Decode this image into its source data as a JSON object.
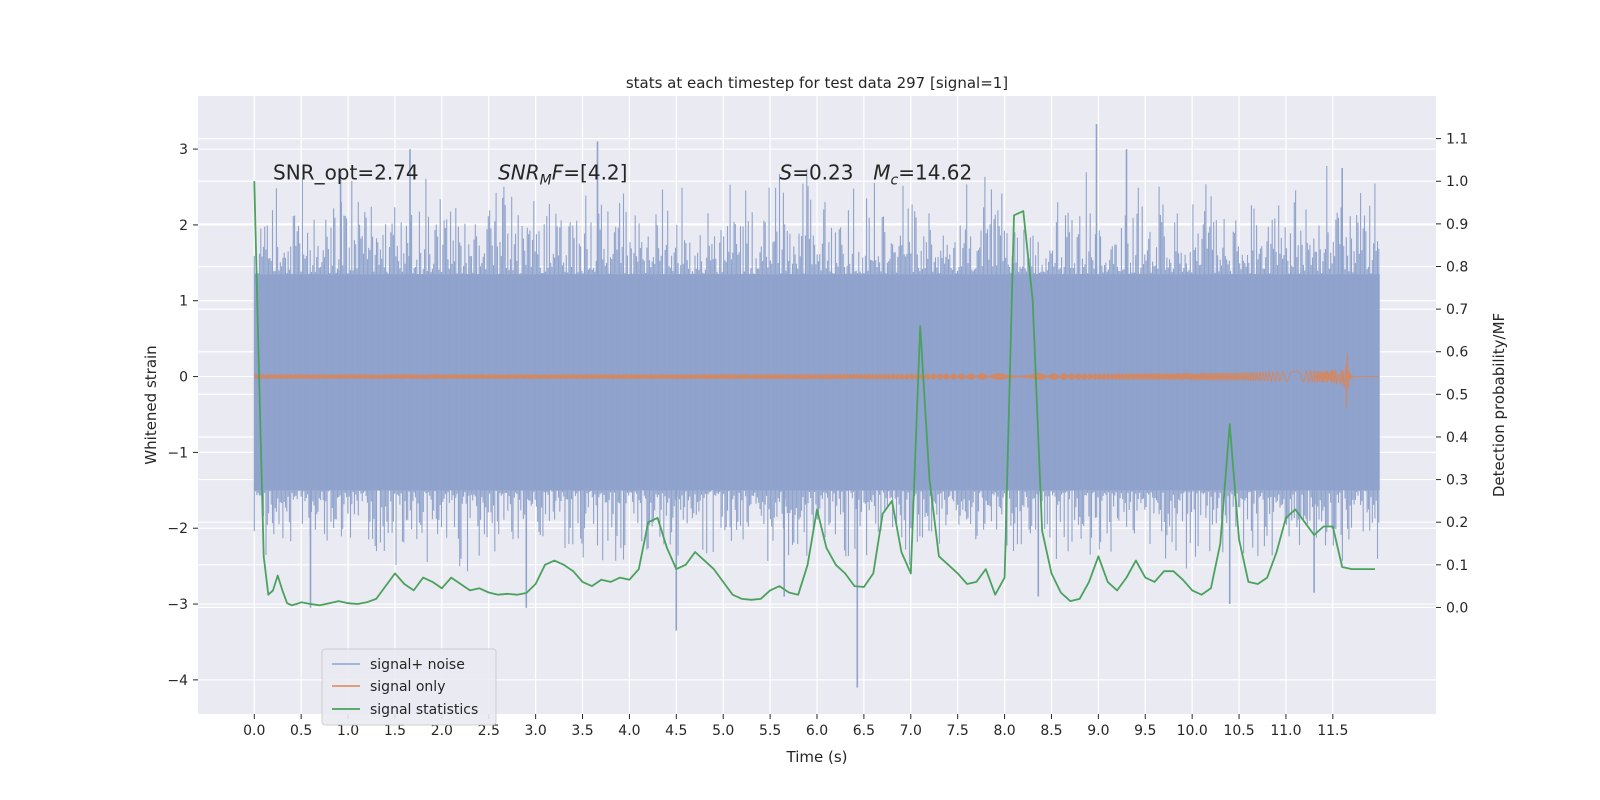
{
  "chart_data": {
    "type": "line",
    "title": "stats at each timestep for test data 297 [signal=1]",
    "xlabel": "Time (s)",
    "ylabel_left": "Whitened strain",
    "ylabel_right": "Detection probability/MF",
    "xlim": [
      -0.6,
      12.6
    ],
    "ylim_left": [
      -4.45,
      3.7
    ],
    "ylim_right": [
      -0.25,
      1.2
    ],
    "x_ticks": [
      0.0,
      0.5,
      1.0,
      1.5,
      2.0,
      2.5,
      3.0,
      3.5,
      4.0,
      4.5,
      5.0,
      5.5,
      6.0,
      6.5,
      7.0,
      7.5,
      8.0,
      8.5,
      9.0,
      9.5,
      10.0,
      10.5,
      11.0,
      11.5
    ],
    "x_tick_labels": [
      "0.0",
      "0.5",
      "1.0",
      "1.5",
      "2.0",
      "2.5",
      "3.0",
      "3.5",
      "4.0",
      "4.5",
      "5.0",
      "5.5",
      "6.0",
      "6.5",
      "7.0",
      "7.5",
      "8.0",
      "8.5",
      "9.0",
      "9.5",
      "10.0",
      "10.5",
      "11.0",
      "11.5"
    ],
    "y_left_ticks": [
      -4,
      -3,
      -2,
      -1,
      0,
      1,
      2,
      3
    ],
    "y_left_tick_labels": [
      "−4",
      "−3",
      "−2",
      "−1",
      "0",
      "1",
      "2",
      "3"
    ],
    "y_right_ticks": [
      0.0,
      0.1,
      0.2,
      0.3,
      0.4,
      0.5,
      0.6,
      0.7,
      0.8,
      0.9,
      1.0,
      1.1
    ],
    "y_right_tick_labels": [
      "0.0",
      "0.1",
      "0.2",
      "0.3",
      "0.4",
      "0.5",
      "0.6",
      "0.7",
      "0.8",
      "0.9",
      "1.0",
      "1.1"
    ],
    "grid": true,
    "legend_position": "lower-left",
    "annotations": [
      {
        "text": "SNR_opt=2.74",
        "x": 0.2,
        "y": 2.6
      },
      {
        "text": "SNR_MF=[4.2]",
        "x": 2.6,
        "y": 2.6
      },
      {
        "text": "S=0.23",
        "x": 5.6,
        "y": 2.6
      },
      {
        "text": "M_c=14.62",
        "x": 6.6,
        "y": 2.6
      }
    ],
    "series": [
      {
        "name": "signal+ noise",
        "axis": "left",
        "color": "#8fa3cc",
        "note": "dense whitened strain noise, roughly -1.7..1.4 bulk with spikes up to 3.3 and down to -4.1",
        "x_range": [
          0.0,
          12.0
        ],
        "bulk_range": [
          -1.5,
          1.35
        ],
        "peaks": [
          {
            "x": 0.92,
            "y": 2.7
          },
          {
            "x": 1.66,
            "y": 3.0
          },
          {
            "x": 3.66,
            "y": 3.1
          },
          {
            "x": 8.98,
            "y": 3.33
          },
          {
            "x": 9.3,
            "y": 3.0
          },
          {
            "x": 11.6,
            "y": 2.75
          },
          {
            "x": 6.43,
            "y": -4.1
          },
          {
            "x": 4.5,
            "y": -3.35
          },
          {
            "x": 0.6,
            "y": -3.05
          },
          {
            "x": 2.9,
            "y": -3.05
          },
          {
            "x": 10.4,
            "y": -3.0
          },
          {
            "x": 5.65,
            "y": -2.9
          },
          {
            "x": 8.36,
            "y": -2.9
          },
          {
            "x": 11.3,
            "y": -2.85
          }
        ]
      },
      {
        "name": "signal only",
        "axis": "left",
        "color": "#dd8452",
        "note": "chirp with growing amplitude, merger near 11.65 s",
        "x_range": [
          0.0,
          12.0
        ],
        "merger_time": 11.65,
        "peak_amplitude": 0.42
      },
      {
        "name": "signal statistics",
        "axis": "right",
        "color": "#4aa25d",
        "x": [
          0.0,
          0.05,
          0.1,
          0.15,
          0.2,
          0.25,
          0.3,
          0.35,
          0.4,
          0.45,
          0.5,
          0.6,
          0.7,
          0.8,
          0.9,
          1.0,
          1.1,
          1.2,
          1.3,
          1.4,
          1.5,
          1.6,
          1.7,
          1.8,
          1.9,
          2.0,
          2.1,
          2.2,
          2.3,
          2.4,
          2.5,
          2.6,
          2.7,
          2.8,
          2.9,
          3.0,
          3.1,
          3.2,
          3.3,
          3.4,
          3.5,
          3.6,
          3.7,
          3.8,
          3.9,
          4.0,
          4.1,
          4.2,
          4.3,
          4.4,
          4.5,
          4.6,
          4.7,
          4.8,
          4.9,
          5.0,
          5.1,
          5.2,
          5.3,
          5.4,
          5.5,
          5.6,
          5.7,
          5.8,
          5.9,
          6.0,
          6.1,
          6.2,
          6.3,
          6.4,
          6.5,
          6.6,
          6.7,
          6.8,
          6.9,
          7.0,
          7.1,
          7.2,
          7.3,
          7.4,
          7.5,
          7.6,
          7.7,
          7.8,
          7.9,
          8.0,
          8.1,
          8.2,
          8.3,
          8.4,
          8.5,
          8.6,
          8.7,
          8.8,
          8.9,
          9.0,
          9.1,
          9.2,
          9.3,
          9.4,
          9.5,
          9.6,
          9.7,
          9.8,
          9.9,
          10.0,
          10.1,
          10.2,
          10.3,
          10.4,
          10.5,
          10.6,
          10.7,
          10.8,
          10.9,
          11.0,
          11.1,
          11.2,
          11.3,
          11.4,
          11.5,
          11.6,
          11.7,
          11.8,
          11.9,
          11.95
        ],
        "y": [
          1.0,
          0.55,
          0.12,
          0.03,
          0.04,
          0.075,
          0.04,
          0.01,
          0.005,
          0.008,
          0.012,
          0.008,
          0.005,
          0.01,
          0.015,
          0.01,
          0.008,
          0.012,
          0.02,
          0.05,
          0.08,
          0.055,
          0.04,
          0.07,
          0.06,
          0.045,
          0.07,
          0.055,
          0.04,
          0.045,
          0.035,
          0.03,
          0.032,
          0.03,
          0.034,
          0.055,
          0.1,
          0.11,
          0.1,
          0.085,
          0.06,
          0.05,
          0.065,
          0.06,
          0.07,
          0.065,
          0.09,
          0.2,
          0.21,
          0.14,
          0.09,
          0.1,
          0.13,
          0.11,
          0.09,
          0.06,
          0.03,
          0.02,
          0.018,
          0.02,
          0.04,
          0.05,
          0.035,
          0.03,
          0.1,
          0.23,
          0.14,
          0.1,
          0.08,
          0.05,
          0.048,
          0.08,
          0.22,
          0.25,
          0.13,
          0.08,
          0.66,
          0.3,
          0.12,
          0.1,
          0.08,
          0.055,
          0.06,
          0.09,
          0.03,
          0.07,
          0.92,
          0.93,
          0.72,
          0.18,
          0.08,
          0.035,
          0.015,
          0.02,
          0.06,
          0.12,
          0.06,
          0.04,
          0.07,
          0.11,
          0.07,
          0.06,
          0.085,
          0.085,
          0.065,
          0.04,
          0.03,
          0.045,
          0.15,
          0.43,
          0.16,
          0.06,
          0.055,
          0.07,
          0.13,
          0.21,
          0.23,
          0.2,
          0.17,
          0.19,
          0.19,
          0.095,
          0.09,
          0.09,
          0.09,
          0.09
        ]
      }
    ]
  }
}
